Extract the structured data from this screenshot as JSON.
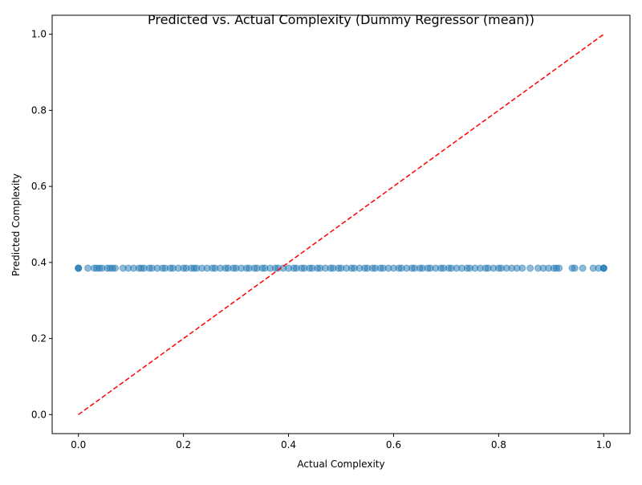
{
  "chart_data": {
    "type": "scatter",
    "title": "Predicted vs. Actual Complexity (Dummy Regressor (mean))",
    "xlabel": "Actual Complexity",
    "ylabel": "Predicted Complexity",
    "xlim": [
      -0.05,
      1.05
    ],
    "ylim": [
      -0.05,
      1.05
    ],
    "xticks": [
      "0.0",
      "0.2",
      "0.4",
      "0.6",
      "0.8",
      "1.0"
    ],
    "yticks": [
      "0.0",
      "0.2",
      "0.4",
      "0.6",
      "0.8",
      "1.0"
    ],
    "grid": false,
    "legend": "none",
    "point_color": "#1f77b4",
    "point_alpha": 0.5,
    "reference_line": {
      "x": [
        0,
        1
      ],
      "y": [
        0,
        1
      ],
      "color": "#ff0000",
      "style": "dashed"
    },
    "series": [
      {
        "predicted_constant": 0.385,
        "x": [
          0.0,
          0.0,
          0.0,
          0.018,
          0.03,
          0.035,
          0.04,
          0.045,
          0.055,
          0.06,
          0.065,
          0.07,
          0.085,
          0.095,
          0.105,
          0.115,
          0.12,
          0.125,
          0.135,
          0.14,
          0.15,
          0.16,
          0.165,
          0.175,
          0.18,
          0.19,
          0.2,
          0.205,
          0.215,
          0.22,
          0.225,
          0.235,
          0.245,
          0.255,
          0.26,
          0.27,
          0.28,
          0.285,
          0.295,
          0.3,
          0.31,
          0.32,
          0.325,
          0.335,
          0.34,
          0.35,
          0.355,
          0.365,
          0.375,
          0.38,
          0.39,
          0.4,
          0.41,
          0.415,
          0.425,
          0.43,
          0.44,
          0.445,
          0.455,
          0.46,
          0.47,
          0.48,
          0.485,
          0.495,
          0.5,
          0.51,
          0.52,
          0.525,
          0.535,
          0.545,
          0.55,
          0.56,
          0.565,
          0.575,
          0.58,
          0.59,
          0.6,
          0.61,
          0.615,
          0.625,
          0.635,
          0.64,
          0.65,
          0.655,
          0.665,
          0.67,
          0.68,
          0.69,
          0.695,
          0.705,
          0.71,
          0.72,
          0.73,
          0.74,
          0.745,
          0.755,
          0.765,
          0.775,
          0.78,
          0.79,
          0.8,
          0.805,
          0.815,
          0.825,
          0.835,
          0.845,
          0.86,
          0.875,
          0.885,
          0.895,
          0.905,
          0.91,
          0.915,
          0.94,
          0.945,
          0.96,
          0.98,
          0.99,
          1.0,
          1.0,
          1.0
        ]
      }
    ]
  }
}
